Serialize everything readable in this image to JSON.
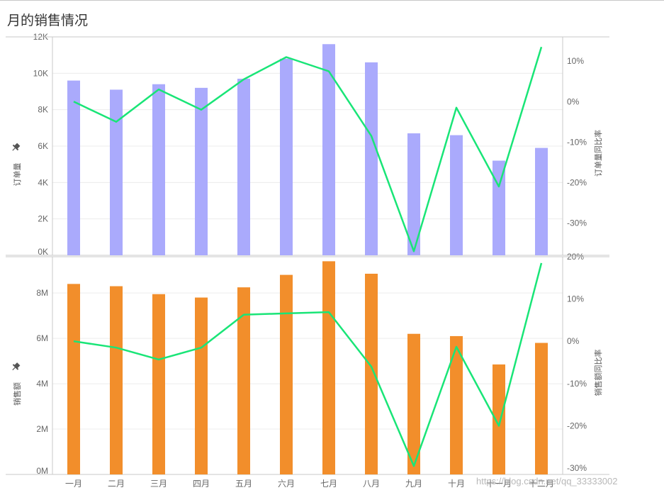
{
  "title": "月的销售情况",
  "watermark": "https://blog.csdn.net/qq_33333002",
  "colors": {
    "orders_bar": "#aaaafc",
    "sales_bar": "#f28e2b",
    "yoy_line": "#19e577",
    "grid": "#ececec",
    "axis": "#c8c8c8"
  },
  "chart_data": [
    {
      "type": "bar+line",
      "ylabel": "订单量",
      "y2label": "订单量同比率",
      "ylim": [
        0,
        12000
      ],
      "y2lim": [
        -38,
        16
      ],
      "yticks": [
        {
          "v": 0,
          "label": "0K"
        },
        {
          "v": 2000,
          "label": "2K"
        },
        {
          "v": 4000,
          "label": "4K"
        },
        {
          "v": 6000,
          "label": "6K"
        },
        {
          "v": 8000,
          "label": "8K"
        },
        {
          "v": 10000,
          "label": "10K"
        },
        {
          "v": 12000,
          "label": "12K"
        }
      ],
      "y2ticks": [
        {
          "v": -30,
          "label": "-30%"
        },
        {
          "v": -20,
          "label": "-20%"
        },
        {
          "v": -10,
          "label": "-10%"
        },
        {
          "v": 0,
          "label": "0%"
        },
        {
          "v": 10,
          "label": "10%"
        }
      ],
      "categories": [
        "一月",
        "二月",
        "三月",
        "四月",
        "五月",
        "六月",
        "七月",
        "八月",
        "九月",
        "十月",
        "十一月",
        "十二月"
      ],
      "series": [
        {
          "name": "订单量",
          "type": "bar",
          "values": [
            9600,
            9100,
            9400,
            9200,
            9700,
            10800,
            11600,
            10600,
            6700,
            6600,
            5200,
            5900
          ]
        },
        {
          "name": "订单量同比率",
          "type": "line",
          "axis": "right",
          "values": [
            0,
            -5,
            3,
            -2,
            5.5,
            11,
            7.5,
            -8.5,
            -37,
            -1.5,
            -21,
            13.5
          ]
        }
      ]
    },
    {
      "type": "bar+line",
      "ylabel": "销售额",
      "y2label": "销售额同比率",
      "ylim": [
        0,
        9600000
      ],
      "y2lim": [
        -31.5,
        20
      ],
      "yticks": [
        {
          "v": 0,
          "label": "0M"
        },
        {
          "v": 2000000,
          "label": "2M"
        },
        {
          "v": 4000000,
          "label": "4M"
        },
        {
          "v": 6000000,
          "label": "6M"
        },
        {
          "v": 8000000,
          "label": "8M"
        }
      ],
      "y2ticks": [
        {
          "v": -30,
          "label": "-30%"
        },
        {
          "v": -20,
          "label": "-20%"
        },
        {
          "v": -10,
          "label": "-10%"
        },
        {
          "v": 0,
          "label": "0%"
        },
        {
          "v": 10,
          "label": "10%"
        },
        {
          "v": 20,
          "label": "20%"
        }
      ],
      "categories": [
        "一月",
        "二月",
        "三月",
        "四月",
        "五月",
        "六月",
        "七月",
        "八月",
        "九月",
        "十月",
        "十一月",
        "十二月"
      ],
      "series": [
        {
          "name": "销售额",
          "type": "bar",
          "values": [
            8400000,
            8300000,
            7950000,
            7800000,
            8250000,
            8800000,
            9400000,
            8850000,
            6200000,
            6100000,
            4850000,
            5800000
          ]
        },
        {
          "name": "销售额同比率",
          "type": "line",
          "axis": "right",
          "values": [
            0,
            -1.5,
            -4.3,
            -1.5,
            6.3,
            6.6,
            6.9,
            -6,
            -29.5,
            -1.3,
            -20,
            18.5
          ]
        }
      ]
    }
  ]
}
